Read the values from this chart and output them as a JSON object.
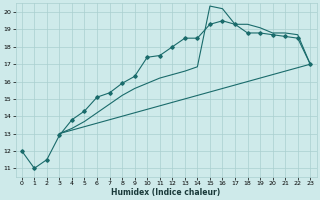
{
  "xlabel": "Humidex (Indice chaleur)",
  "bg_color": "#ceeaea",
  "grid_color": "#aacfcf",
  "line_color": "#1a6b6b",
  "xlim": [
    -0.5,
    23.5
  ],
  "ylim": [
    10.5,
    20.5
  ],
  "yticks": [
    11,
    12,
    13,
    14,
    15,
    16,
    17,
    18,
    19,
    20
  ],
  "xticks": [
    0,
    1,
    2,
    3,
    4,
    5,
    6,
    7,
    8,
    9,
    10,
    11,
    12,
    13,
    14,
    15,
    16,
    17,
    18,
    19,
    20,
    21,
    22,
    23
  ],
  "curve1_x": [
    0,
    1,
    2,
    3,
    4,
    5,
    6,
    7,
    8,
    9,
    10,
    11,
    12,
    13,
    14,
    15,
    16,
    17,
    18,
    19,
    20,
    21,
    22,
    23
  ],
  "curve1_y": [
    12.0,
    11.0,
    11.5,
    12.9,
    13.8,
    14.3,
    15.1,
    15.35,
    15.9,
    16.3,
    17.4,
    17.5,
    18.0,
    18.5,
    18.5,
    19.3,
    19.5,
    19.3,
    18.8,
    18.8,
    18.7,
    18.6,
    18.5,
    17.0
  ],
  "curve2_x": [
    3,
    4,
    5,
    6,
    7,
    8,
    9,
    10,
    11,
    12,
    13,
    14,
    15,
    16,
    17,
    18,
    19,
    20,
    21,
    22,
    23
  ],
  "curve2_y": [
    13.0,
    13.3,
    13.7,
    14.2,
    14.7,
    15.2,
    15.6,
    15.9,
    16.2,
    16.4,
    16.6,
    16.85,
    20.35,
    20.2,
    19.3,
    19.3,
    19.1,
    18.8,
    18.8,
    18.7,
    17.0
  ],
  "curve3_x": [
    3,
    23
  ],
  "curve3_y": [
    13.0,
    17.0
  ]
}
